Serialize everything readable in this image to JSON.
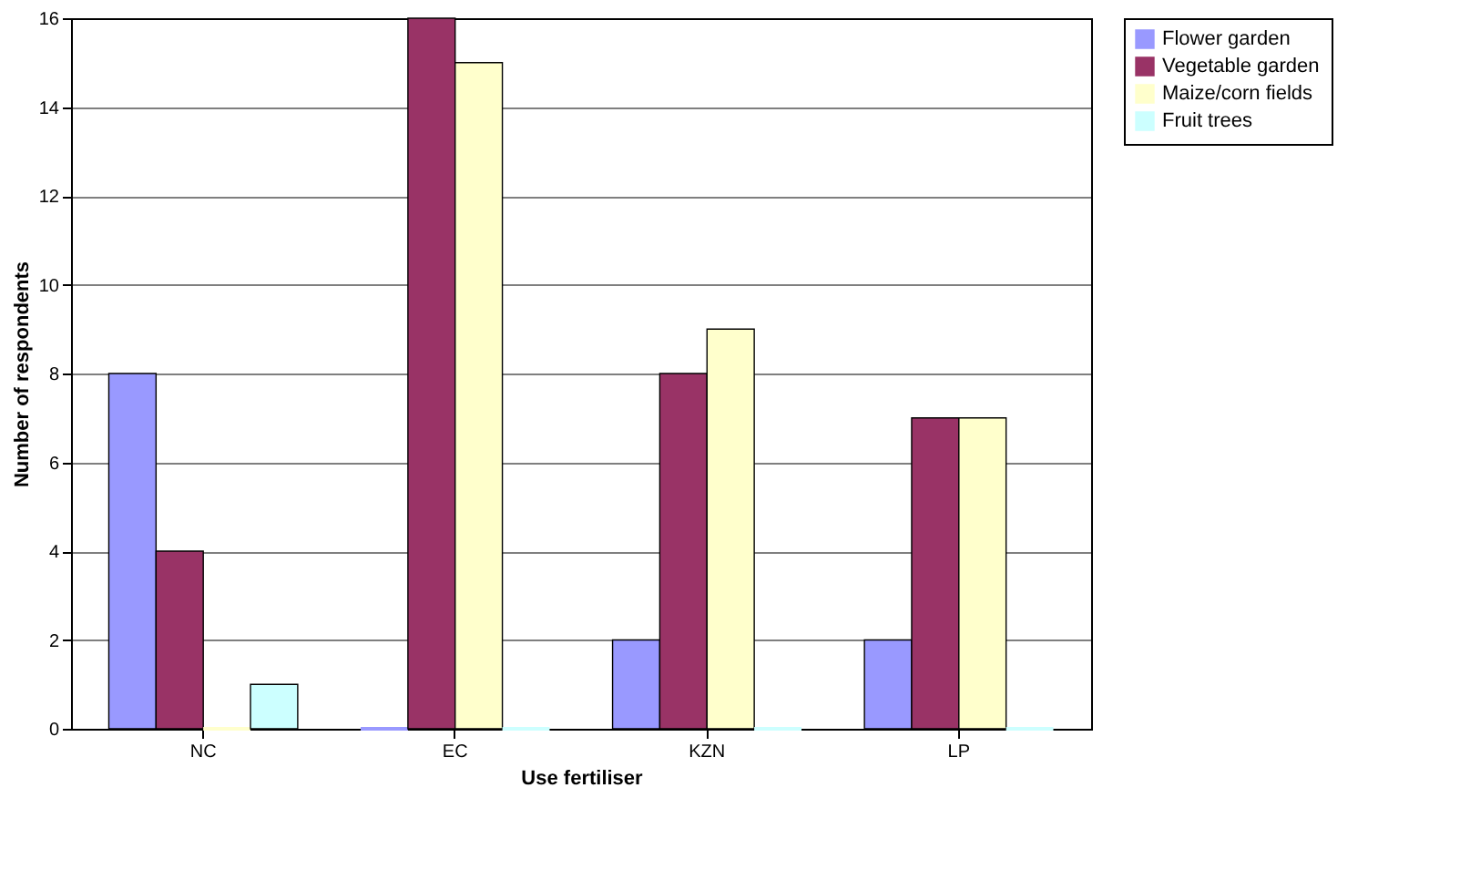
{
  "chart_data": {
    "type": "bar",
    "xlabel": "Use fertiliser",
    "ylabel": "Number of respondents",
    "categories": [
      "NC",
      "EC",
      "KZN",
      "LP"
    ],
    "series": [
      {
        "name": "Flower garden",
        "color": "#9999ff",
        "values": [
          8,
          0,
          2,
          2
        ]
      },
      {
        "name": "Vegetable garden",
        "color": "#993366",
        "values": [
          4,
          16,
          8,
          7
        ]
      },
      {
        "name": "Maize/corn fields",
        "color": "#ffffcc",
        "values": [
          0,
          15,
          9,
          7
        ]
      },
      {
        "name": "Fruit trees",
        "color": "#ccffff",
        "values": [
          1,
          0,
          0,
          0
        ]
      }
    ],
    "ylim": [
      0,
      16
    ],
    "yticks": [
      0,
      2,
      4,
      6,
      8,
      10,
      12,
      14,
      16
    ],
    "grid": "y",
    "legend": "right"
  }
}
